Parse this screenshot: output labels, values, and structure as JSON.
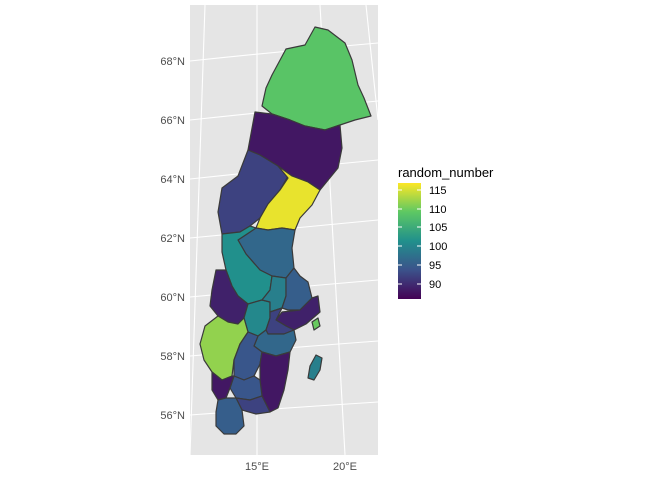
{
  "map": {
    "y_labels": [
      "68°N",
      "66°N",
      "64°N",
      "62°N",
      "60°N",
      "58°N",
      "56°N"
    ],
    "x_labels": [
      "15°E",
      "20°E"
    ]
  },
  "legend": {
    "title": "random_number",
    "labels": [
      "115",
      "110",
      "105",
      "100",
      "95",
      "90"
    ],
    "range": [
      87,
      117
    ]
  },
  "colors": {
    "panel_bg": "#e5e5e5",
    "grid": "#ffffff",
    "viridis": [
      "#440154",
      "#3b528b",
      "#21908c",
      "#5dc863",
      "#fde725"
    ]
  },
  "regions": [
    {
      "id": "norrbotten",
      "value": 109
    },
    {
      "id": "vasterbotten",
      "value": 89
    },
    {
      "id": "jamtland",
      "value": 93
    },
    {
      "id": "vasternorrland",
      "value": 116
    },
    {
      "id": "gavleborg",
      "value": 97
    },
    {
      "id": "dalarna",
      "value": 102
    },
    {
      "id": "varmland",
      "value": 90
    },
    {
      "id": "orebro",
      "value": 101
    },
    {
      "id": "vastmanland",
      "value": 100
    },
    {
      "id": "uppsala",
      "value": 96
    },
    {
      "id": "stockholm",
      "value": 90
    },
    {
      "id": "sodermanland",
      "value": 93
    },
    {
      "id": "vastra_gotaland",
      "value": 112
    },
    {
      "id": "ostergotland",
      "value": 97
    },
    {
      "id": "jonkoping",
      "value": 95
    },
    {
      "id": "kalmar",
      "value": 89
    },
    {
      "id": "kronoberg",
      "value": 95
    },
    {
      "id": "halland",
      "value": 89
    },
    {
      "id": "blekinge",
      "value": 93
    },
    {
      "id": "skane",
      "value": 96
    },
    {
      "id": "gotland",
      "value": 100
    },
    {
      "id": "nw_island",
      "value": 110
    }
  ]
}
